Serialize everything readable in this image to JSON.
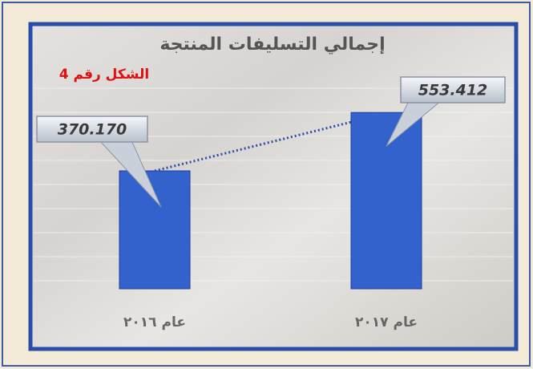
{
  "chart_data": {
    "type": "bar",
    "title": "إجمالي التسليفات المنتجة",
    "annotation": "الشكل رقم 4",
    "categories": [
      "عام ٢٠١٦",
      "عام ٢٠١٧"
    ],
    "values": [
      370.17,
      553.412
    ],
    "value_labels": [
      "370.170",
      "553.412"
    ],
    "color": "#3362cc",
    "ylim": [
      0,
      700
    ]
  }
}
